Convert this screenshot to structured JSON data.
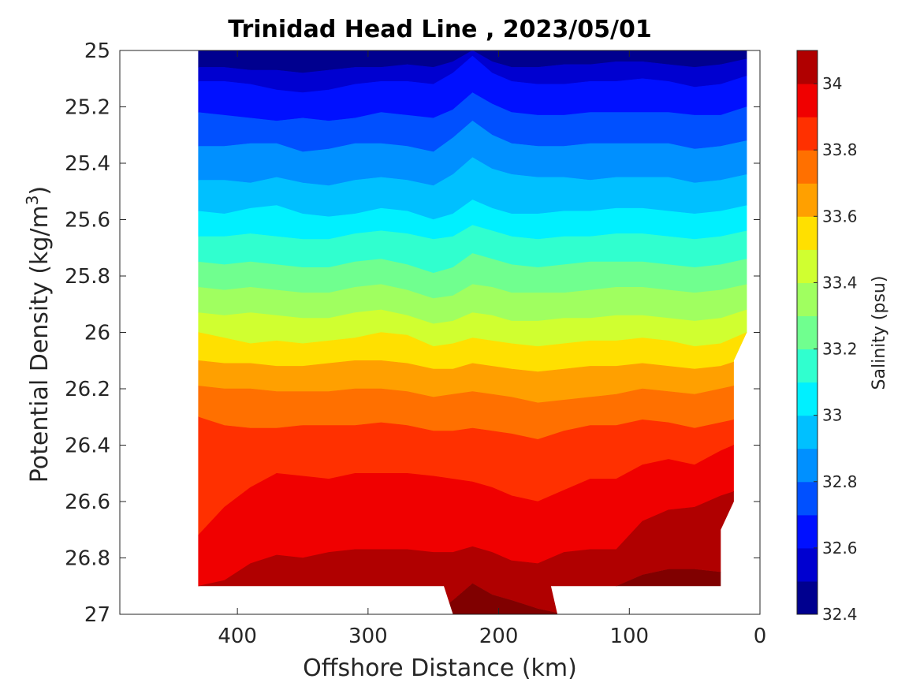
{
  "chart_data": {
    "type": "heatmap",
    "subtype": "filled-contour",
    "title": "Trinidad Head Line , 2023/05/01",
    "xlabel": "Offshore Distance (km)",
    "ylabel_main": "Potential Density (kg/m",
    "ylabel_sup": "3",
    "ylabel_close": ")",
    "xlim": [
      490,
      0
    ],
    "x_reversed": true,
    "ylim": [
      25,
      27
    ],
    "y_reversed": true,
    "xticks": [
      400,
      300,
      200,
      100,
      0
    ],
    "xtick_labels": [
      "400",
      "300",
      "200",
      "100",
      "0"
    ],
    "yticks": [
      25,
      25.2,
      25.4,
      25.6,
      25.8,
      26,
      26.2,
      26.4,
      26.6,
      26.8,
      27
    ],
    "ytick_labels": [
      "25",
      "25.2",
      "25.4",
      "25.6",
      "25.8",
      "26",
      "26.2",
      "26.4",
      "26.6",
      "26.8",
      "27"
    ],
    "colorbar": {
      "label": "Salinity (psu)",
      "range": [
        32.4,
        34.1
      ],
      "ticks": [
        32.4,
        32.6,
        32.8,
        33,
        33.2,
        33.4,
        33.6,
        33.8,
        34
      ],
      "tick_labels": [
        "32.4",
        "32.6",
        "32.8",
        "33",
        "33.2",
        "33.4",
        "33.6",
        "33.8",
        "34"
      ],
      "levels": [
        32.4,
        32.5,
        32.6,
        32.7,
        32.8,
        32.9,
        33.0,
        33.1,
        33.2,
        33.3,
        33.4,
        33.5,
        33.6,
        33.7,
        33.8,
        33.9,
        34.0,
        34.1
      ],
      "colors": [
        "#00008f",
        "#0000d0",
        "#0010ff",
        "#0050ff",
        "#0090ff",
        "#00c0ff",
        "#00f0ff",
        "#30ffcf",
        "#70ff8f",
        "#a0ff60",
        "#d0ff30",
        "#ffe000",
        "#ffa000",
        "#ff7000",
        "#ff3000",
        "#f00000",
        "#b00000"
      ]
    },
    "data_extent": {
      "x_range_km": [
        430,
        10
      ],
      "density_bottom_shallow": 26.9,
      "deep_station_x_km": [
        240,
        160
      ],
      "deep_station_bottom": 27.0,
      "nearshore_cutoff": [
        [
          10,
          26.0
        ],
        [
          20,
          26.1
        ],
        [
          20,
          26.6
        ],
        [
          30,
          26.7
        ],
        [
          30,
          26.9
        ]
      ]
    },
    "x": [
      430,
      410,
      390,
      370,
      350,
      330,
      310,
      290,
      270,
      250,
      235,
      220,
      205,
      190,
      170,
      150,
      130,
      110,
      90,
      70,
      50,
      30,
      10
    ],
    "isolines": [
      {
        "level": 32.5,
        "y": [
          25.06,
          25.06,
          25.07,
          25.07,
          25.08,
          25.07,
          25.06,
          25.06,
          25.05,
          25.06,
          25.04,
          25.0,
          25.04,
          25.06,
          25.06,
          25.05,
          25.05,
          25.04,
          25.04,
          25.05,
          25.06,
          25.05,
          25.03
        ]
      },
      {
        "level": 32.6,
        "y": [
          25.11,
          25.11,
          25.12,
          25.14,
          25.15,
          25.14,
          25.12,
          25.11,
          25.11,
          25.12,
          25.08,
          25.02,
          25.08,
          25.11,
          25.12,
          25.12,
          25.11,
          25.11,
          25.1,
          25.11,
          25.13,
          25.12,
          25.09
        ]
      },
      {
        "level": 32.7,
        "y": [
          25.22,
          25.23,
          25.24,
          25.25,
          25.24,
          25.25,
          25.24,
          25.22,
          25.23,
          25.24,
          25.21,
          25.15,
          25.19,
          25.22,
          25.23,
          25.23,
          25.22,
          25.22,
          25.22,
          25.22,
          25.23,
          25.23,
          25.2
        ]
      },
      {
        "level": 32.8,
        "y": [
          25.34,
          25.34,
          25.33,
          25.33,
          25.36,
          25.35,
          25.33,
          25.33,
          25.34,
          25.36,
          25.31,
          25.25,
          25.3,
          25.33,
          25.34,
          25.34,
          25.33,
          25.33,
          25.33,
          25.33,
          25.35,
          25.34,
          25.32
        ]
      },
      {
        "level": 32.9,
        "y": [
          25.46,
          25.46,
          25.47,
          25.45,
          25.47,
          25.48,
          25.46,
          25.45,
          25.46,
          25.48,
          25.44,
          25.38,
          25.42,
          25.44,
          25.45,
          25.45,
          25.46,
          25.45,
          25.45,
          25.45,
          25.47,
          25.46,
          25.44
        ]
      },
      {
        "level": 33.0,
        "y": [
          25.57,
          25.58,
          25.56,
          25.55,
          25.58,
          25.59,
          25.58,
          25.56,
          25.57,
          25.6,
          25.58,
          25.53,
          25.56,
          25.58,
          25.58,
          25.57,
          25.57,
          25.56,
          25.56,
          25.57,
          25.58,
          25.57,
          25.55
        ]
      },
      {
        "level": 33.1,
        "y": [
          25.66,
          25.66,
          25.65,
          25.66,
          25.67,
          25.67,
          25.65,
          25.64,
          25.65,
          25.67,
          25.66,
          25.62,
          25.64,
          25.66,
          25.67,
          25.66,
          25.66,
          25.65,
          25.65,
          25.66,
          25.67,
          25.66,
          25.64
        ]
      },
      {
        "level": 33.2,
        "y": [
          25.75,
          25.76,
          25.75,
          25.76,
          25.77,
          25.77,
          25.75,
          25.74,
          25.76,
          25.79,
          25.77,
          25.72,
          25.74,
          25.76,
          25.77,
          25.76,
          25.75,
          25.75,
          25.75,
          25.76,
          25.77,
          25.76,
          25.74
        ]
      },
      {
        "level": 33.3,
        "y": [
          25.84,
          25.85,
          25.84,
          25.85,
          25.86,
          25.86,
          25.84,
          25.83,
          25.85,
          25.88,
          25.87,
          25.83,
          25.84,
          25.86,
          25.86,
          25.86,
          25.85,
          25.84,
          25.84,
          25.85,
          25.86,
          25.85,
          25.83
        ]
      },
      {
        "level": 33.4,
        "y": [
          25.93,
          25.94,
          25.93,
          25.94,
          25.95,
          25.95,
          25.93,
          25.92,
          25.94,
          25.97,
          25.96,
          25.93,
          25.94,
          25.96,
          25.96,
          25.95,
          25.95,
          25.94,
          25.94,
          25.95,
          25.96,
          25.95,
          25.92
        ]
      },
      {
        "level": 33.5,
        "y": [
          26.0,
          26.02,
          26.04,
          26.03,
          26.04,
          26.03,
          26.02,
          26.0,
          26.01,
          26.05,
          26.04,
          26.02,
          26.03,
          26.04,
          26.05,
          26.04,
          26.03,
          26.03,
          26.02,
          26.03,
          26.05,
          26.04,
          26.0
        ]
      },
      {
        "level": 33.6,
        "y": [
          26.1,
          26.11,
          26.11,
          26.12,
          26.12,
          26.11,
          26.1,
          26.1,
          26.11,
          26.13,
          26.13,
          26.11,
          26.12,
          26.13,
          26.14,
          26.13,
          26.12,
          26.12,
          26.11,
          26.12,
          26.13,
          26.12,
          26.09
        ]
      },
      {
        "level": 33.7,
        "y": [
          26.19,
          26.2,
          26.2,
          26.21,
          26.21,
          26.21,
          26.2,
          26.2,
          26.21,
          26.23,
          26.22,
          26.21,
          26.22,
          26.23,
          26.25,
          26.24,
          26.23,
          26.22,
          26.2,
          26.21,
          26.22,
          26.2,
          26.18
        ]
      },
      {
        "level": 33.8,
        "y": [
          26.3,
          26.33,
          26.34,
          26.34,
          26.33,
          26.33,
          26.33,
          26.32,
          26.33,
          26.35,
          26.35,
          26.34,
          26.35,
          26.36,
          26.38,
          26.35,
          26.33,
          26.33,
          26.31,
          26.32,
          26.34,
          26.32,
          26.3
        ]
      },
      {
        "level": 33.9,
        "y": [
          26.72,
          26.62,
          26.55,
          26.5,
          26.51,
          26.52,
          26.5,
          26.5,
          26.5,
          26.51,
          26.52,
          26.53,
          26.55,
          26.58,
          26.6,
          26.56,
          26.52,
          26.52,
          26.47,
          26.45,
          26.47,
          26.42,
          26.38
        ]
      },
      {
        "level": 34.0,
        "y": [
          26.9,
          26.88,
          26.82,
          26.79,
          26.8,
          26.78,
          26.77,
          26.77,
          26.77,
          26.78,
          26.78,
          26.76,
          26.78,
          26.81,
          26.82,
          26.78,
          26.77,
          26.77,
          26.67,
          26.63,
          26.62,
          26.58,
          26.55
        ]
      },
      {
        "level": 34.1,
        "y": [
          27.0,
          27.0,
          27.0,
          27.0,
          27.0,
          27.0,
          27.0,
          27.0,
          27.0,
          27.0,
          26.95,
          26.89,
          26.93,
          26.95,
          26.98,
          27.0,
          27.0,
          26.9,
          26.86,
          26.84,
          26.84,
          26.85,
          27.0
        ]
      }
    ]
  }
}
